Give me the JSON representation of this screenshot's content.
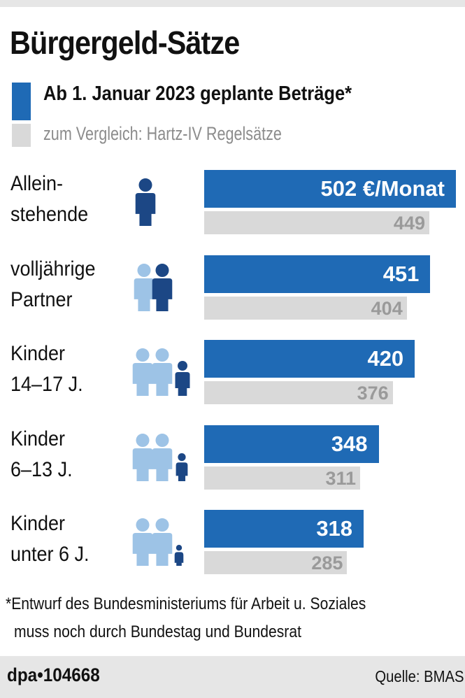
{
  "title": "Bürgergeld-Sätze",
  "chart_data": {
    "type": "bar",
    "orientation": "horizontal",
    "title": "Bürgergeld-Sätze",
    "categories": [
      "Allein- stehende",
      "volljährige Partner",
      "Kinder 14–17 J.",
      "Kinder 6–13 J.",
      "Kinder unter 6 J."
    ],
    "category_lines": [
      [
        "Allein-",
        "stehende"
      ],
      [
        "volljährige",
        "Partner"
      ],
      [
        "Kinder",
        "14–17 J."
      ],
      [
        "Kinder",
        "6–13 J."
      ],
      [
        "Kinder",
        "unter 6 J."
      ]
    ],
    "series": [
      {
        "name": "Ab 1. Januar 2023 geplante Beträge*",
        "values": [
          502,
          451,
          420,
          348,
          318
        ],
        "color": "#1f6ab5"
      },
      {
        "name": "zum Vergleich: Hartz-IV Regelsätze",
        "values": [
          449,
          404,
          376,
          311,
          285
        ],
        "color": "#d9d9d9"
      }
    ],
    "value_labels": {
      "series0": [
        "502 €/Monat",
        "451",
        "420",
        "348",
        "318"
      ],
      "series1": [
        "449",
        "404",
        "376",
        "311",
        "285"
      ]
    },
    "unit": "€/Monat",
    "grid": false,
    "legend": "top-left"
  },
  "icons": {
    "adult_dark": "#1c4785",
    "adult_light": "#9dc3e6",
    "names": [
      "single-adult-icon",
      "two-adults-icon",
      "family-teen-icon",
      "family-child-icon",
      "family-toddler-icon"
    ]
  },
  "footnote": [
    "*Entwurf des Bundesministeriums für Arbeit u. Soziales",
    "muss noch durch Bundestag und Bundesrat"
  ],
  "footer": {
    "id": "dpa•104668",
    "source": "Quelle: BMAS"
  }
}
